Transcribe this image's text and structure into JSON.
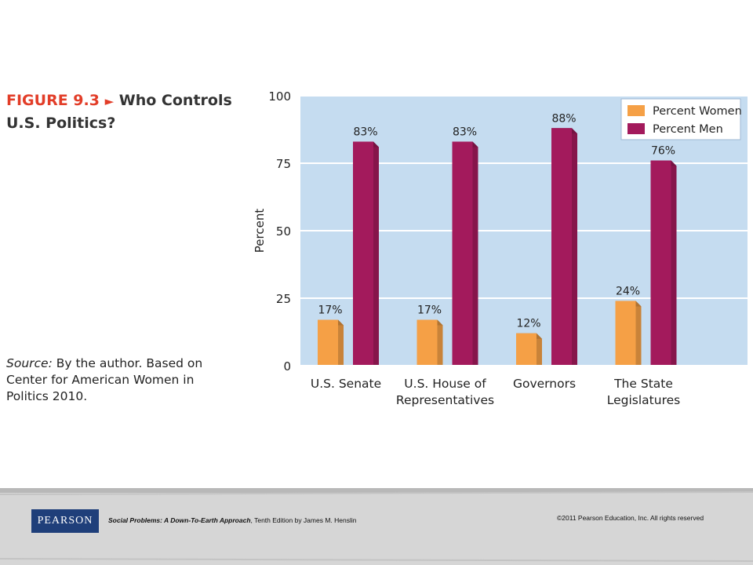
{
  "figure": {
    "label": "FIGURE 9.3",
    "arrow": "►",
    "title": "Who Controls U.S. Politics?"
  },
  "source": {
    "label": "Source:",
    "text": "By the author. Based on Center for American Women in Politics 2010."
  },
  "chart_data": {
    "type": "bar",
    "title": "",
    "xlabel": "",
    "ylabel": "Percent",
    "ylim": [
      0,
      100
    ],
    "yticks": [
      0,
      25,
      50,
      75,
      100
    ],
    "grid": true,
    "legend_position": "top-right",
    "categories": [
      [
        "U.S. Senate"
      ],
      [
        "U.S. House of",
        "Representatives"
      ],
      [
        "Governors"
      ],
      [
        "The State",
        "Legislatures"
      ]
    ],
    "series": [
      {
        "name": "Percent Women",
        "color": "#f5a046",
        "values": [
          17,
          17,
          12,
          24
        ],
        "labels": [
          "17%",
          "17%",
          "12%",
          "24%"
        ]
      },
      {
        "name": "Percent Men",
        "color": "#a31a5c",
        "values": [
          83,
          83,
          88,
          76
        ],
        "labels": [
          "83%",
          "83%",
          "88%",
          "76%"
        ]
      }
    ],
    "plot_background": "#c5dcf0"
  },
  "footer": {
    "logo": "PEARSON",
    "book_title": "Social Problems: A Down-To-Earth Approach",
    "book_edition": ", Tenth Edition by James M. Henslin",
    "copyright": "©2011 Pearson Education, Inc. All rights reserved"
  }
}
